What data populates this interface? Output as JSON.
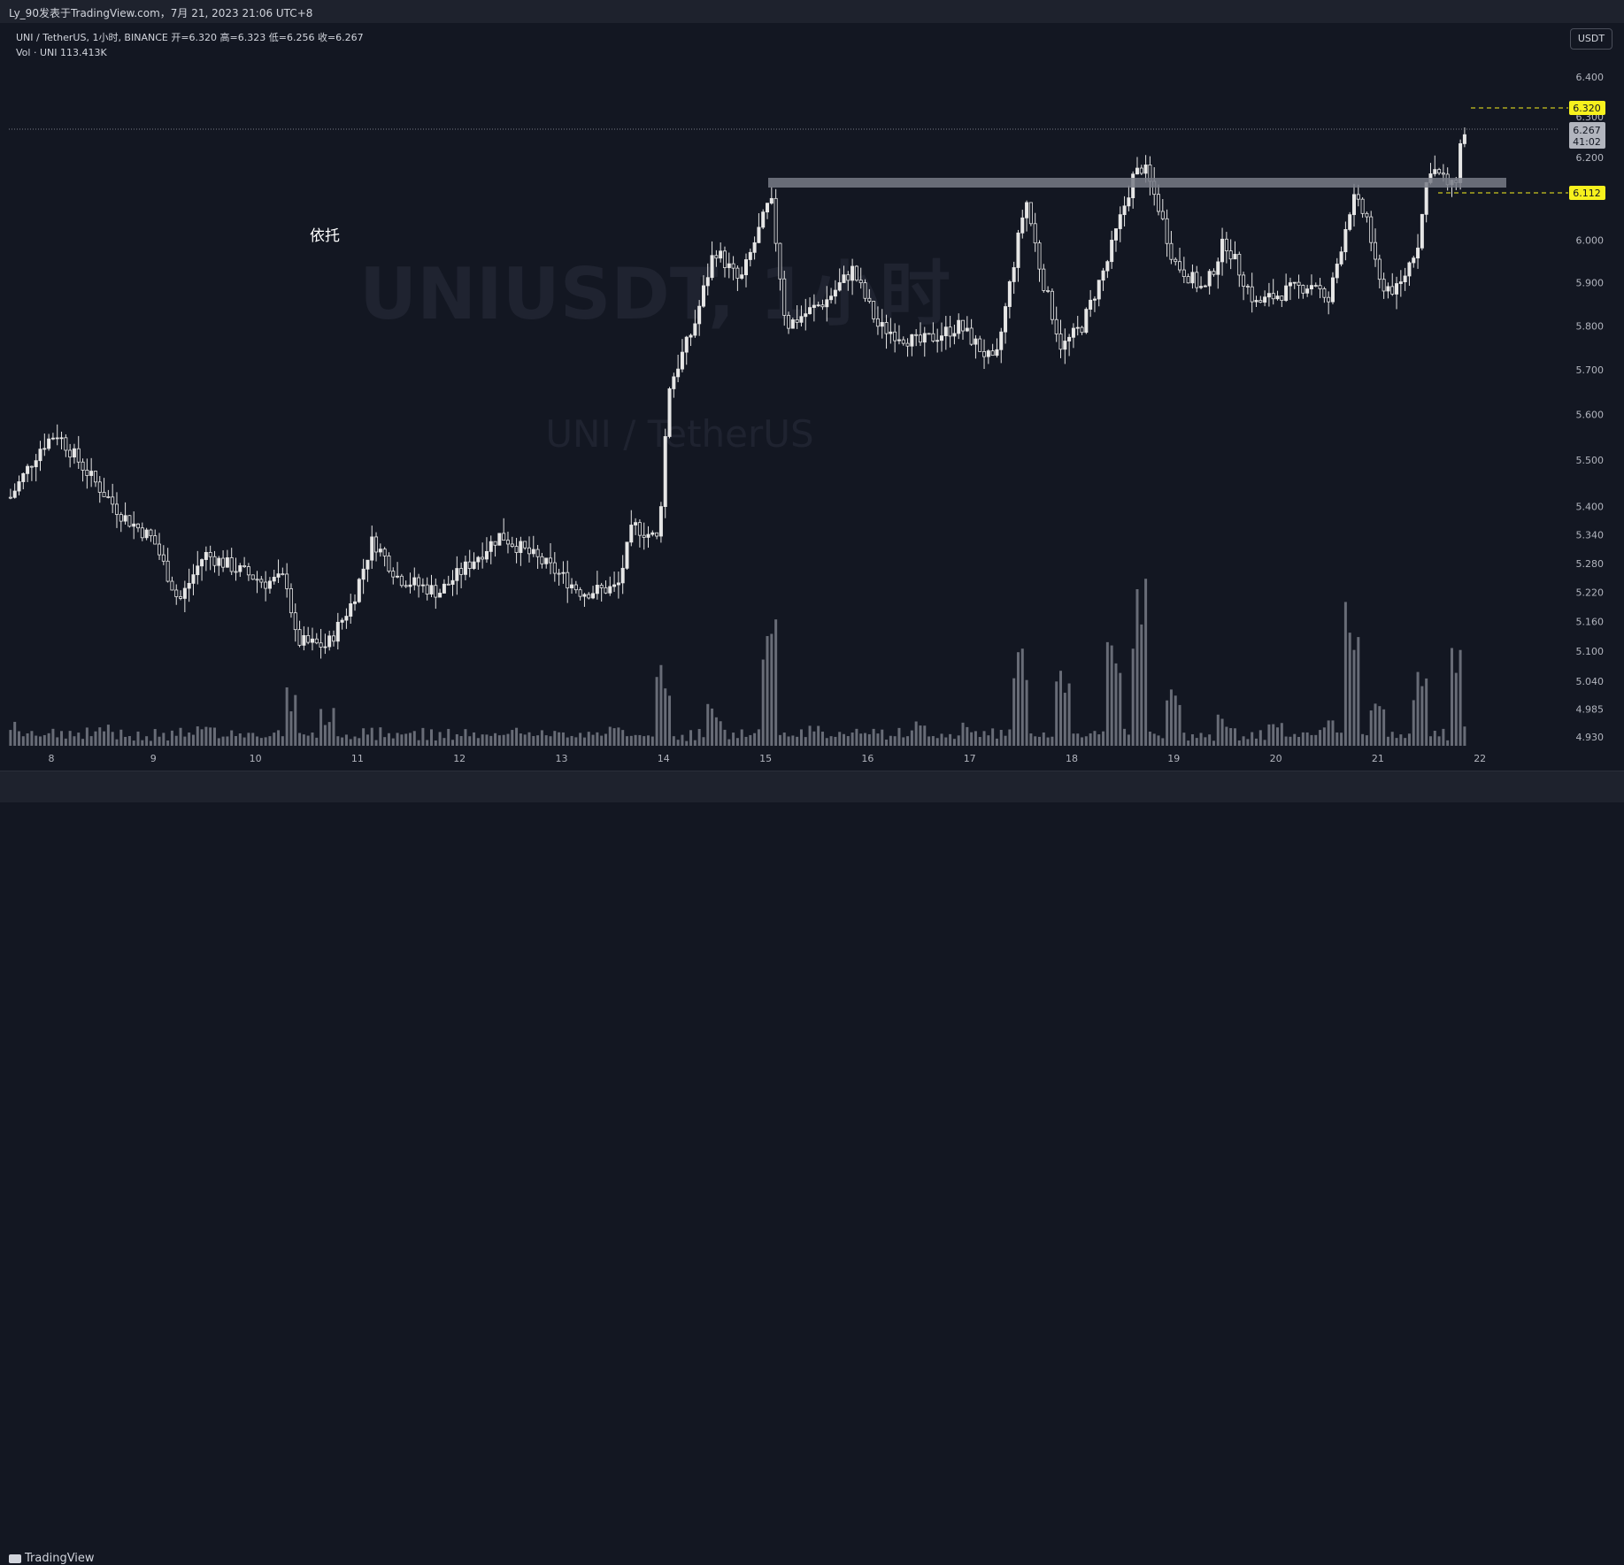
{
  "header": {
    "title": "Ly_90发表于TradingView.com，7月 21, 2023 21:06 UTC+8"
  },
  "legend": {
    "symbol_line": "UNI / TetherUS, 1小时, BINANCE  开=6.320  高=6.323  低=6.256  收=6.267",
    "vol_line": "Vol · UNI  113.413K"
  },
  "currency_button": "USDT",
  "watermark": {
    "line1": "UNIUSDT, 1小时",
    "line2": "UNI / TetherUS"
  },
  "annotation_text": "依托",
  "price_tags": {
    "upper": "6.320",
    "current": "6.267",
    "countdown": "41:02",
    "lower": "6.112"
  },
  "footer": {
    "brand": "TradingView"
  },
  "colors": {
    "background": "#131722",
    "candle": "#e6e6e6",
    "volume": "#787b86",
    "level_zone": "#787b86",
    "tag_yellow": "#f7f11d"
  },
  "chart_data": {
    "type": "candlestick",
    "title": "UNI / TetherUS, 1小时, BINANCE",
    "ylabel": "",
    "xlabel": "",
    "ylim": [
      4.905,
      6.45
    ],
    "y_scale": "log",
    "y_ticks": [
      "6.400",
      "6.300",
      "6.200",
      "6.000",
      "5.900",
      "5.800",
      "5.700",
      "5.600",
      "5.500",
      "5.400",
      "5.340",
      "5.280",
      "5.220",
      "5.160",
      "5.100",
      "5.040",
      "4.985",
      "4.930"
    ],
    "x_ticks": [
      "8",
      "9",
      "10",
      "11",
      "12",
      "13",
      "14",
      "15",
      "16",
      "17",
      "18",
      "19",
      "20",
      "21",
      "22"
    ],
    "interval": "1h",
    "open": 6.32,
    "high": 6.323,
    "low": 6.256,
    "close": 6.267,
    "volume_last": "113.413K",
    "price_path": [
      {
        "day": 7.6,
        "price": 5.42
      },
      {
        "day": 7.9,
        "price": 5.53
      },
      {
        "day": 8.05,
        "price": 5.56
      },
      {
        "day": 8.4,
        "price": 5.46
      },
      {
        "day": 8.7,
        "price": 5.38
      },
      {
        "day": 9.0,
        "price": 5.33
      },
      {
        "day": 9.25,
        "price": 5.2
      },
      {
        "day": 9.5,
        "price": 5.3
      },
      {
        "day": 9.8,
        "price": 5.27
      },
      {
        "day": 10.1,
        "price": 5.24
      },
      {
        "day": 10.3,
        "price": 5.25
      },
      {
        "day": 10.4,
        "price": 5.12
      },
      {
        "day": 10.7,
        "price": 5.11
      },
      {
        "day": 10.95,
        "price": 5.2
      },
      {
        "day": 11.15,
        "price": 5.33
      },
      {
        "day": 11.4,
        "price": 5.25
      },
      {
        "day": 11.8,
        "price": 5.22
      },
      {
        "day": 12.0,
        "price": 5.26
      },
      {
        "day": 12.4,
        "price": 5.34
      },
      {
        "day": 12.9,
        "price": 5.27
      },
      {
        "day": 13.2,
        "price": 5.22
      },
      {
        "day": 13.55,
        "price": 5.23
      },
      {
        "day": 13.7,
        "price": 5.36
      },
      {
        "day": 13.95,
        "price": 5.33
      },
      {
        "day": 14.05,
        "price": 5.66
      },
      {
        "day": 14.3,
        "price": 5.8
      },
      {
        "day": 14.5,
        "price": 5.98
      },
      {
        "day": 14.75,
        "price": 5.9
      },
      {
        "day": 15.05,
        "price": 6.1
      },
      {
        "day": 15.2,
        "price": 5.8
      },
      {
        "day": 15.6,
        "price": 5.86
      },
      {
        "day": 15.85,
        "price": 5.93
      },
      {
        "day": 16.1,
        "price": 5.8
      },
      {
        "day": 16.5,
        "price": 5.76
      },
      {
        "day": 16.9,
        "price": 5.8
      },
      {
        "day": 17.25,
        "price": 5.71
      },
      {
        "day": 17.55,
        "price": 6.1
      },
      {
        "day": 17.7,
        "price": 5.92
      },
      {
        "day": 17.9,
        "price": 5.75
      },
      {
        "day": 18.1,
        "price": 5.8
      },
      {
        "day": 18.35,
        "price": 5.95
      },
      {
        "day": 18.6,
        "price": 6.15
      },
      {
        "day": 18.7,
        "price": 6.18
      },
      {
        "day": 18.85,
        "price": 6.08
      },
      {
        "day": 19.0,
        "price": 5.95
      },
      {
        "day": 19.3,
        "price": 5.88
      },
      {
        "day": 19.5,
        "price": 6.0
      },
      {
        "day": 19.8,
        "price": 5.85
      },
      {
        "day": 20.1,
        "price": 5.88
      },
      {
        "day": 20.4,
        "price": 5.9
      },
      {
        "day": 20.5,
        "price": 5.84
      },
      {
        "day": 20.75,
        "price": 6.1
      },
      {
        "day": 20.9,
        "price": 6.05
      },
      {
        "day": 21.0,
        "price": 5.9
      },
      {
        "day": 21.2,
        "price": 5.88
      },
      {
        "day": 21.4,
        "price": 6.0
      },
      {
        "day": 21.5,
        "price": 6.18
      },
      {
        "day": 21.75,
        "price": 6.12
      },
      {
        "day": 21.82,
        "price": 6.25
      },
      {
        "day": 21.86,
        "price": 6.267
      }
    ],
    "volume_profile": [
      {
        "day": 7.6,
        "v": 0.12
      },
      {
        "day": 8.5,
        "v": 0.1
      },
      {
        "day": 9.5,
        "v": 0.1
      },
      {
        "day": 10.35,
        "v": 0.28
      },
      {
        "day": 10.7,
        "v": 0.18
      },
      {
        "day": 11.5,
        "v": 0.08
      },
      {
        "day": 12.5,
        "v": 0.1
      },
      {
        "day": 13.5,
        "v": 0.1
      },
      {
        "day": 14.0,
        "v": 0.4
      },
      {
        "day": 14.5,
        "v": 0.2
      },
      {
        "day": 15.05,
        "v": 0.8
      },
      {
        "day": 15.5,
        "v": 0.1
      },
      {
        "day": 16.5,
        "v": 0.12
      },
      {
        "day": 17.0,
        "v": 0.12
      },
      {
        "day": 17.5,
        "v": 0.5
      },
      {
        "day": 17.9,
        "v": 0.4
      },
      {
        "day": 18.4,
        "v": 0.55
      },
      {
        "day": 18.65,
        "v": 0.9
      },
      {
        "day": 19.0,
        "v": 0.3
      },
      {
        "day": 19.5,
        "v": 0.15
      },
      {
        "day": 20.0,
        "v": 0.12
      },
      {
        "day": 20.5,
        "v": 0.12
      },
      {
        "day": 20.75,
        "v": 0.75
      },
      {
        "day": 21.0,
        "v": 0.25
      },
      {
        "day": 21.4,
        "v": 0.35
      },
      {
        "day": 21.8,
        "v": 0.6
      },
      {
        "day": 21.86,
        "v": 0.18
      }
    ],
    "levels": [
      {
        "label": "6.320",
        "price": 6.32,
        "style": "dashed-yellow"
      },
      {
        "label": "6.112",
        "price": 6.112,
        "style": "dashed-yellow"
      },
      {
        "label": "6.267",
        "price": 6.267,
        "style": "dotted-current"
      }
    ],
    "zone": {
      "from_day": 15.05,
      "to_day": 22.25,
      "price": 6.135,
      "label": "依托"
    }
  }
}
